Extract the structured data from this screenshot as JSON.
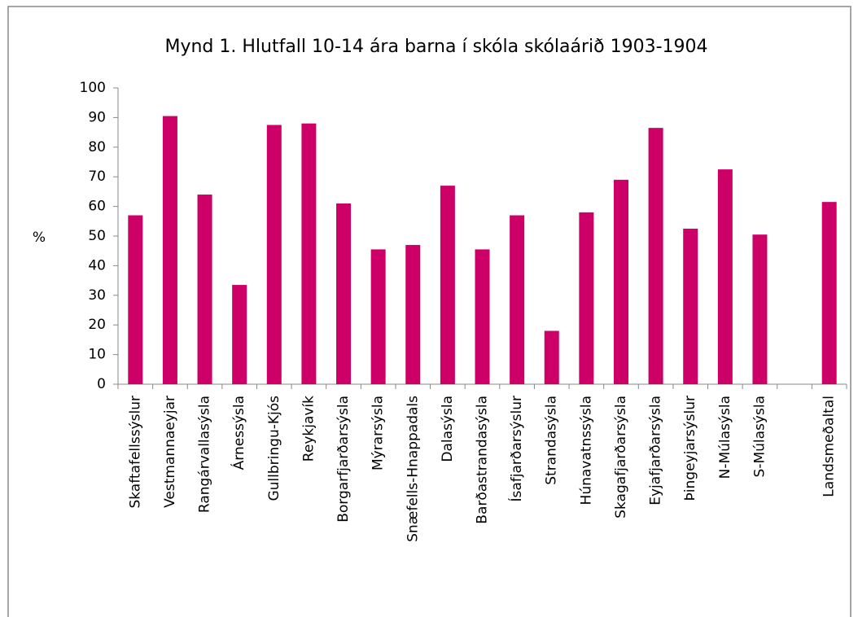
{
  "chart_data": {
    "type": "bar",
    "title": "Mynd 1. Hlutfall 10-14 ára barna í skóla skólaárið 1903-1904",
    "y_label": "%",
    "categories": [
      "Skaftafellssýslur",
      "Vestmannaeyjar",
      "Rangárvallasýsla",
      "Árnessýsla",
      "Gullbringu-Kjós",
      "Reykjavík",
      "Borgarfjarðarsýsla",
      "Mýrarsýsla",
      "Snæfells-Hnappadals",
      "Dalasýsla",
      "Barðastrandasýsla",
      "Ísafjarðarsýslur",
      "Strandasýsla",
      "Húnavatnssýsla",
      "Skagafjarðarsýsla",
      "Eyjafjarðarsýsla",
      "Þingeyjarsýslur",
      "N-Múlasýsla",
      "S-Múlasýsla",
      null,
      "Landsmeðaltal"
    ],
    "values": [
      57,
      90.5,
      64,
      33.5,
      87.5,
      88,
      61,
      45.5,
      47,
      67,
      45.5,
      57,
      18,
      58,
      69,
      86.5,
      52.5,
      72.5,
      50.5,
      null,
      61.5
    ],
    "color": "#cc0066",
    "ylim": [
      0,
      100
    ],
    "yticks": [
      0,
      10,
      20,
      30,
      40,
      50,
      60,
      70,
      80,
      90,
      100
    ]
  }
}
